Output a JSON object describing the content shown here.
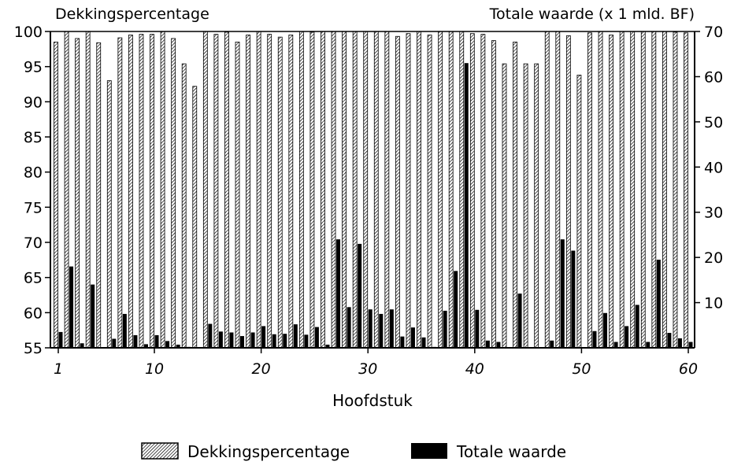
{
  "chart_data": {
    "type": "bar",
    "left_axis_title": "Dekkingspercentage",
    "right_axis_title": "Totale waarde (x 1 mld. BF)",
    "xlabel": "Hoofdstuk",
    "x_ticks": [
      "1",
      "10",
      "20",
      "30",
      "40",
      "50",
      "60"
    ],
    "y_left_ticks": [
      "55",
      "60",
      "65",
      "70",
      "75",
      "80",
      "85",
      "90",
      "95",
      "100"
    ],
    "y_right_ticks": [
      "10",
      "20",
      "30",
      "40",
      "50",
      "60",
      "70"
    ],
    "ylim_left": [
      55,
      100
    ],
    "ylim_right": [
      0,
      70
    ],
    "grid": false,
    "legend_position": "bottom",
    "chapters": [
      1,
      2,
      3,
      4,
      5,
      6,
      7,
      8,
      9,
      10,
      11,
      12,
      13,
      14,
      15,
      16,
      17,
      18,
      19,
      20,
      21,
      22,
      23,
      24,
      25,
      26,
      27,
      28,
      29,
      30,
      31,
      32,
      33,
      34,
      35,
      36,
      37,
      38,
      39,
      40,
      41,
      42,
      43,
      44,
      45,
      46,
      47,
      48,
      49,
      50,
      51,
      52,
      53,
      54,
      55,
      56,
      57,
      58,
      59,
      60
    ],
    "series": [
      {
        "name": "Dekkingspercentage",
        "axis": "left",
        "pattern": "hatched",
        "values": [
          98.5,
          100,
          99,
          100,
          98.4,
          93,
          99.1,
          99.5,
          99.6,
          99.6,
          100,
          99,
          95.4,
          92.2,
          100,
          99.6,
          99.9,
          98.5,
          99.5,
          100,
          99.6,
          99.2,
          99.5,
          100,
          99.9,
          100,
          100,
          100,
          100,
          100,
          100,
          100,
          99.3,
          99.7,
          100,
          99.5,
          100,
          100,
          100,
          99.7,
          99.6,
          98.7,
          95.4,
          98.5,
          95.4,
          95.4,
          100,
          100,
          99.4,
          93.8,
          99.8,
          100,
          99.5,
          100,
          100,
          100,
          100,
          100,
          99.9,
          99.8
        ]
      },
      {
        "name": "Totale waarde",
        "axis": "right",
        "pattern": "solid",
        "color": "#000000",
        "values": [
          3.5,
          18,
          1,
          14,
          0,
          2,
          7.5,
          2.8,
          0.8,
          2.8,
          1.5,
          0.7,
          0.2,
          0,
          5.3,
          3.6,
          3.4,
          2.6,
          3.4,
          4.8,
          3,
          3.1,
          5.2,
          2.9,
          4.6,
          0.7,
          24,
          9,
          23,
          8.5,
          7.5,
          8.5,
          2.5,
          4.5,
          2.3,
          0.2,
          8.2,
          17,
          63,
          8.4,
          1.6,
          1.3,
          0,
          12,
          0,
          0,
          1.6,
          24,
          21.5,
          0,
          3.7,
          7.7,
          1.3,
          4.8,
          9.5,
          1.3,
          19.5,
          3.3,
          2.1,
          1.3
        ]
      }
    ]
  }
}
